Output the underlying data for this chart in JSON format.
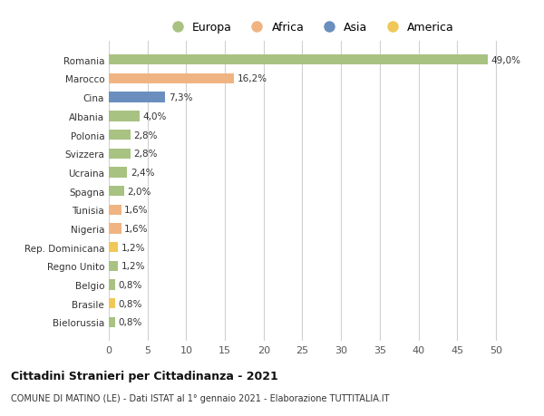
{
  "countries": [
    "Romania",
    "Marocco",
    "Cina",
    "Albania",
    "Polonia",
    "Svizzera",
    "Ucraina",
    "Spagna",
    "Tunisia",
    "Nigeria",
    "Rep. Dominicana",
    "Regno Unito",
    "Belgio",
    "Brasile",
    "Bielorussia"
  ],
  "values": [
    49.0,
    16.2,
    7.3,
    4.0,
    2.8,
    2.8,
    2.4,
    2.0,
    1.6,
    1.6,
    1.2,
    1.2,
    0.8,
    0.8,
    0.8
  ],
  "labels": [
    "49,0%",
    "16,2%",
    "7,3%",
    "4,0%",
    "2,8%",
    "2,8%",
    "2,4%",
    "2,0%",
    "1,6%",
    "1,6%",
    "1,2%",
    "1,2%",
    "0,8%",
    "0,8%",
    "0,8%"
  ],
  "colors": [
    "#a8c282",
    "#f0b482",
    "#6a8fbf",
    "#a8c282",
    "#a8c282",
    "#a8c282",
    "#a8c282",
    "#a8c282",
    "#f0b482",
    "#f0b482",
    "#f0c857",
    "#a8c282",
    "#a8c282",
    "#f0c857",
    "#a8c282"
  ],
  "legend_labels": [
    "Europa",
    "Africa",
    "Asia",
    "America"
  ],
  "legend_colors": [
    "#a8c282",
    "#f0b482",
    "#6a8fbf",
    "#f0c857"
  ],
  "title_main": "Cittadini Stranieri per Cittadinanza - 2021",
  "title_sub": "COMUNE DI MATINO (LE) - Dati ISTAT al 1° gennaio 2021 - Elaborazione TUTTITALIA.IT",
  "xlim": [
    0,
    52
  ],
  "xticks": [
    0,
    5,
    10,
    15,
    20,
    25,
    30,
    35,
    40,
    45,
    50
  ],
  "background_color": "#ffffff",
  "grid_color": "#d0d0d0",
  "bar_height": 0.55
}
